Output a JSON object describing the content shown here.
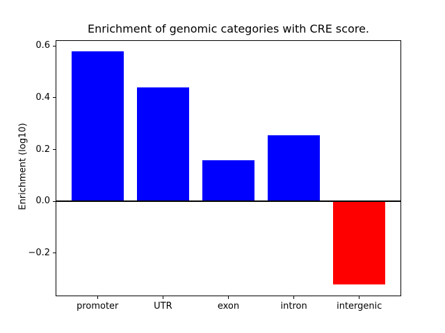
{
  "chart_data": {
    "type": "bar",
    "title": "Enrichment of genomic categories with CRE score.",
    "xlabel": "",
    "ylabel": "Enrichment (log10)",
    "categories": [
      "promoter",
      "UTR",
      "exon",
      "intron",
      "intergenic"
    ],
    "values": [
      0.58,
      0.44,
      0.16,
      0.255,
      -0.32
    ],
    "bar_colors": [
      "#0000ff",
      "#0000ff",
      "#0000ff",
      "#0000ff",
      "#ff0000"
    ],
    "positive_color": "#0000ff",
    "negative_color": "#ff0000",
    "bar_width": 0.8,
    "yticks": [
      0.6,
      0.4,
      0.2,
      0.0,
      -0.2
    ],
    "ytick_labels": [
      "0.6",
      "0.4",
      "0.2",
      "0.0",
      "−0.2"
    ],
    "ylim": [
      -0.3667,
      0.6225
    ],
    "xlim": [
      -0.64,
      4.64
    ],
    "zero_line": true,
    "grid": false,
    "legend": "none",
    "background_color": "#ffffff",
    "axis_color": "#000000"
  }
}
